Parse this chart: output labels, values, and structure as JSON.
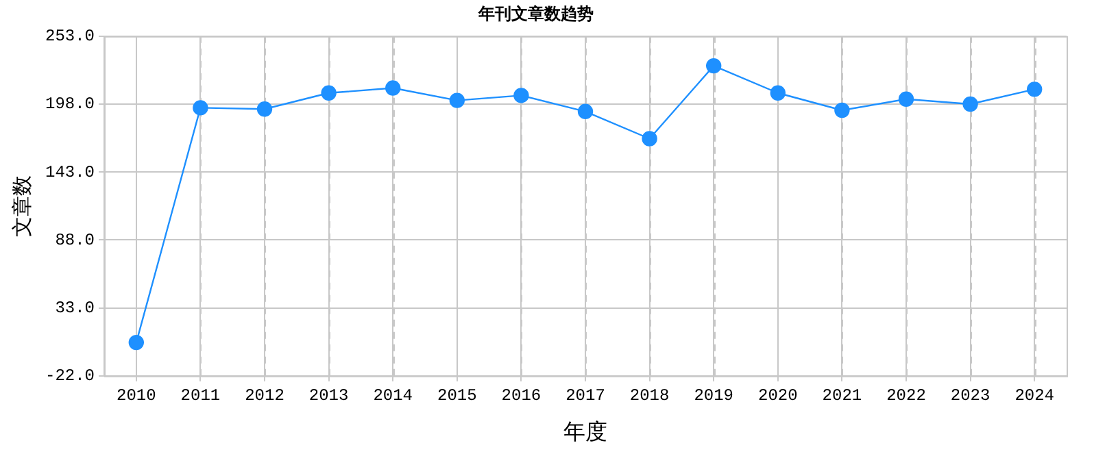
{
  "chart_data": {
    "type": "line",
    "title": "年刊文章数趋势",
    "xlabel": "年度",
    "ylabel": "文章数",
    "categories": [
      "2010",
      "2011",
      "2012",
      "2013",
      "2014",
      "2015",
      "2016",
      "2017",
      "2018",
      "2019",
      "2020",
      "2021",
      "2022",
      "2023",
      "2024"
    ],
    "series": [
      {
        "color": "#1e90ff",
        "values": [
          5,
          195,
          194,
          207,
          211,
          201,
          205,
          192,
          170,
          229,
          207,
          193,
          202,
          198,
          210
        ]
      }
    ],
    "ylim": [
      -22,
      253
    ],
    "yticks": [
      {
        "value": -22,
        "label": "-22.0"
      },
      {
        "value": 33,
        "label": "33.0"
      },
      {
        "value": 88,
        "label": "88.0"
      },
      {
        "value": 143,
        "label": "143.0"
      },
      {
        "value": 198,
        "label": "198.0"
      },
      {
        "value": 253,
        "label": "253.0"
      }
    ],
    "grid": true,
    "marker": "circle",
    "line_style": "solid",
    "legend": false
  }
}
